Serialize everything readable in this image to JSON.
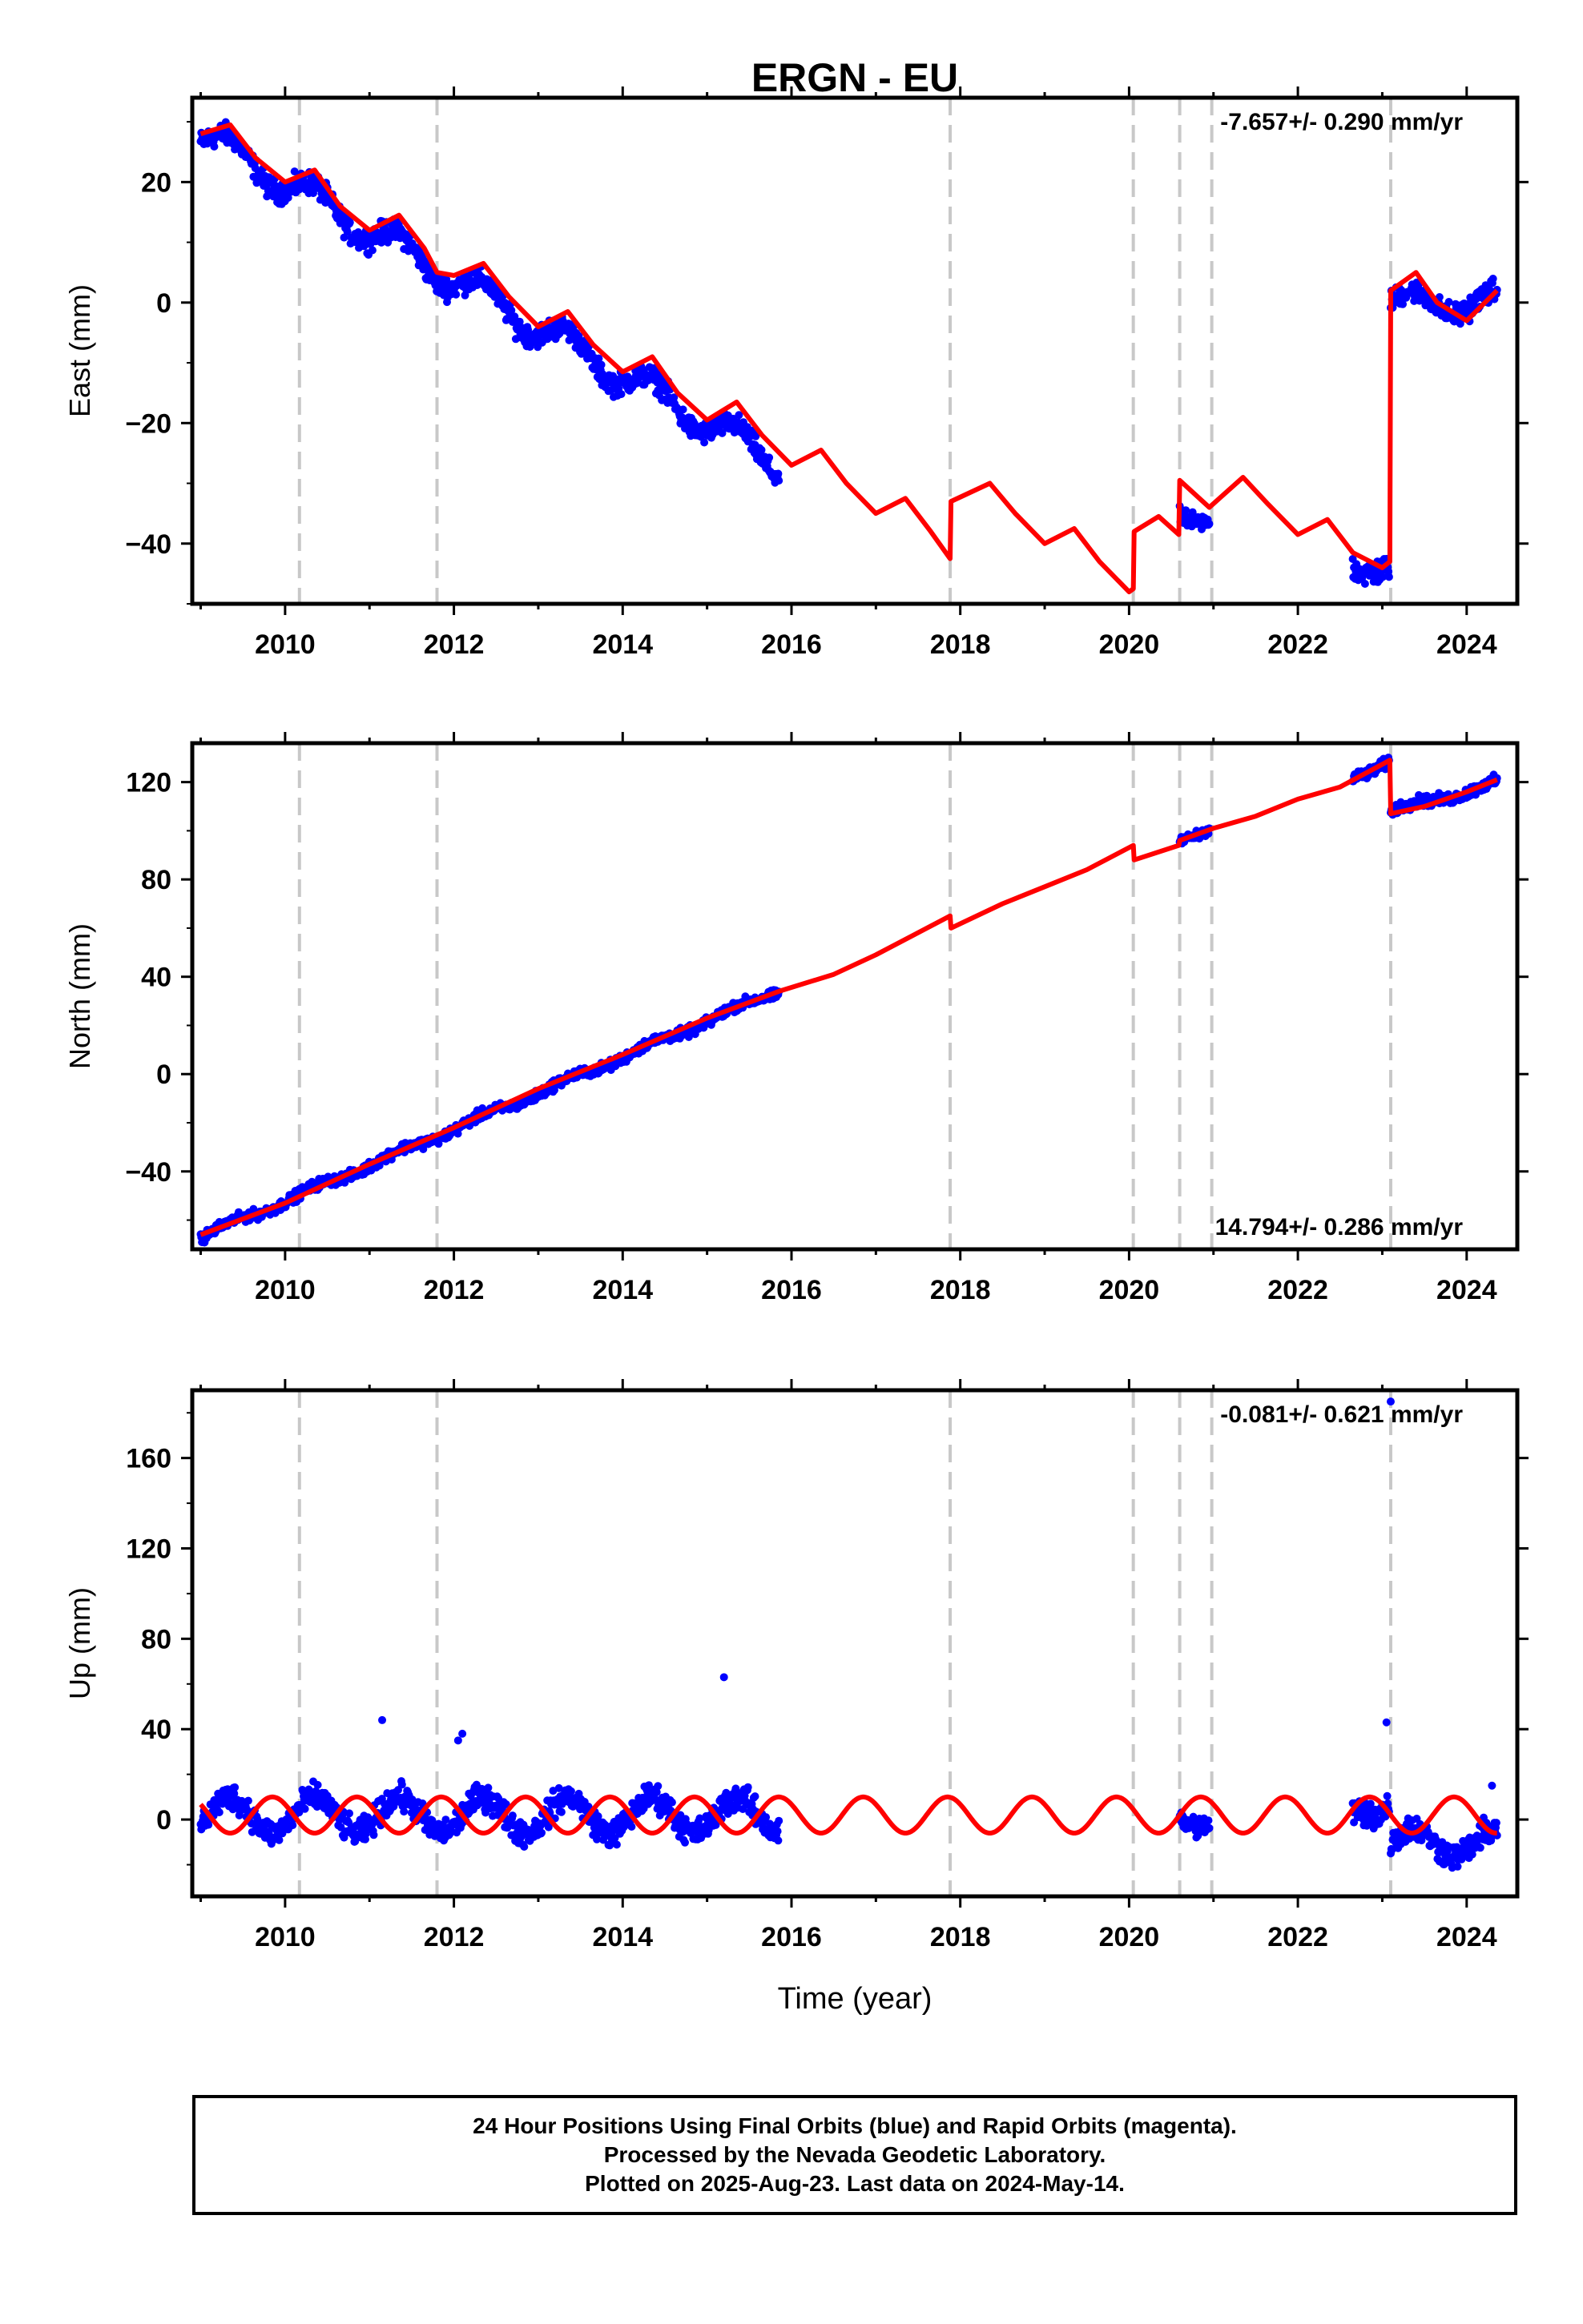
{
  "chart_data": [
    {
      "type": "scatter",
      "title": "ERGN - EU",
      "ylabel": "East (mm)",
      "xlabel": "",
      "xlim": [
        2008.9,
        2024.6
      ],
      "ylim": [
        -50,
        34
      ],
      "yticks": [
        20,
        0,
        -20,
        -40
      ],
      "xticks": [
        2010,
        2012,
        2014,
        2016,
        2018,
        2020,
        2022,
        2024
      ],
      "annotation": "-7.657+/- 0.290 mm/yr",
      "grid": false,
      "steps": [
        {
          "x": 2023.1,
          "dy": 46
        },
        {
          "x": 2020.6,
          "dy": 9
        },
        {
          "x": 2020.05,
          "dy": 9
        },
        {
          "x": 2017.88,
          "dy": 9
        }
      ],
      "series": [
        {
          "name": "",
          "kind": "points",
          "color": "#0000ff",
          "segments": [
            {
              "start": 2009.0,
              "end": 2015.85,
              "y0": 28,
              "rate": -8.0,
              "amp": 2.4,
              "noise": 1.6,
              "n": 900
            },
            {
              "start": 2020.6,
              "end": 2020.95,
              "y0": -35.5,
              "rate": 0,
              "amp": 1.0,
              "noise": 1.2,
              "n": 40
            },
            {
              "start": 2022.65,
              "end": 2023.08,
              "y0": -43.5,
              "rate": 0,
              "amp": 1.5,
              "noise": 1.8,
              "n": 60
            },
            {
              "start": 2023.1,
              "end": 2024.36,
              "y0": 0,
              "rate": 0,
              "amp": 2.0,
              "noise": 1.6,
              "n": 160
            }
          ]
        },
        {
          "name": "",
          "kind": "model",
          "color": "#ff0000",
          "x": [
            2009.0,
            2009.35,
            2009.65,
            2010.0,
            2010.35,
            2010.65,
            2011.0,
            2011.35,
            2011.65,
            2011.8,
            2012.0,
            2012.35,
            2012.65,
            2013.0,
            2013.35,
            2013.65,
            2014.0,
            2014.35,
            2014.65,
            2015.0,
            2015.35,
            2015.65,
            2016.0,
            2016.35,
            2016.65,
            2017.0,
            2017.35,
            2017.65,
            2017.88,
            2017.89,
            2018.35,
            2018.65,
            2019.0,
            2019.35,
            2019.65,
            2020.0,
            2020.05,
            2020.06,
            2020.35,
            2020.59,
            2020.6,
            2020.95,
            2021.35,
            2021.65,
            2022.0,
            2022.35,
            2022.65,
            2023.0,
            2023.09,
            2023.1,
            2023.4,
            2023.65,
            2024.0,
            2024.36
          ],
          "y": [
            28,
            29.5,
            24,
            20,
            22,
            16,
            12,
            14.5,
            9,
            5,
            4.5,
            6.5,
            1,
            -4,
            -1.5,
            -7,
            -11.5,
            -9,
            -15,
            -19.5,
            -16.5,
            -22,
            -27,
            -24.5,
            -30,
            -35,
            -32.5,
            -38,
            -42.5,
            -33,
            -30,
            -35,
            -40,
            -37.5,
            -43,
            -48,
            -47.5,
            -38,
            -35.5,
            -38.5,
            -29.5,
            -34,
            -29,
            -33.5,
            -38.5,
            -36,
            -41.5,
            -44,
            -43,
            2,
            5,
            0,
            -3,
            2
          ]
        }
      ]
    },
    {
      "type": "scatter",
      "title": "",
      "ylabel": "North (mm)",
      "xlabel": "",
      "xlim": [
        2008.9,
        2024.6
      ],
      "ylim": [
        -72,
        136
      ],
      "yticks": [
        120,
        80,
        40,
        0,
        -40
      ],
      "xticks": [
        2010,
        2012,
        2014,
        2016,
        2018,
        2020,
        2022,
        2024
      ],
      "annotation": "14.794+/- 0.286 mm/yr",
      "grid": false,
      "series": [
        {
          "name": "",
          "kind": "points",
          "color": "#0000ff",
          "segments": [
            {
              "start": 2009.0,
              "end": 2015.85,
              "y0": -67,
              "rate": 14.8,
              "amp": 1.2,
              "noise": 1.8,
              "n": 900
            },
            {
              "start": 2020.6,
              "end": 2020.95,
              "y0": 96,
              "rate": 14.8,
              "amp": 0.8,
              "noise": 1.5,
              "n": 40
            },
            {
              "start": 2022.65,
              "end": 2023.08,
              "y0": 122,
              "rate": 14.8,
              "amp": 1.0,
              "noise": 2.0,
              "n": 60
            },
            {
              "start": 2023.1,
              "end": 2024.36,
              "y0": 108,
              "rate": 9.0,
              "amp": 1.2,
              "noise": 2.0,
              "n": 160
            }
          ]
        },
        {
          "name": "",
          "kind": "model",
          "color": "#ff0000",
          "x": [
            2009.0,
            2010.0,
            2011.0,
            2012.0,
            2013.0,
            2014.0,
            2015.0,
            2015.85,
            2016.5,
            2017.0,
            2017.88,
            2017.89,
            2018.5,
            2019.0,
            2019.5,
            2020.05,
            2020.06,
            2020.59,
            2020.6,
            2021.0,
            2021.5,
            2022.0,
            2022.5,
            2023.09,
            2023.1,
            2023.5,
            2024.0,
            2024.36
          ],
          "y": [
            -66,
            -53,
            -37,
            -22,
            -6,
            8,
            23,
            34,
            41,
            49,
            65,
            60,
            70,
            77,
            84,
            94,
            88,
            94,
            96,
            101,
            106,
            113,
            118,
            129,
            107,
            110,
            116,
            121
          ]
        }
      ]
    },
    {
      "type": "scatter",
      "title": "",
      "ylabel": "Up (mm)",
      "xlabel": "Time (year)",
      "xlim": [
        2008.9,
        2024.6
      ],
      "ylim": [
        -34,
        190
      ],
      "yticks": [
        160,
        120,
        80,
        40,
        0
      ],
      "xticks": [
        2010,
        2012,
        2014,
        2016,
        2018,
        2020,
        2022,
        2024
      ],
      "annotation": "-0.081+/- 0.621 mm/yr",
      "grid": false,
      "outliers": [
        [
          2011.15,
          44
        ],
        [
          2012.1,
          38
        ],
        [
          2012.05,
          35
        ],
        [
          2015.2,
          63
        ],
        [
          2023.05,
          43
        ],
        [
          2023.1,
          185
        ],
        [
          2024.3,
          15
        ]
      ],
      "series": [
        {
          "name": "",
          "kind": "points",
          "color": "#0000ff",
          "segments": [
            {
              "start": 2009.0,
              "end": 2015.85,
              "y0": 2,
              "rate": 0,
              "amp": 8.0,
              "noise": 5.0,
              "n": 900
            },
            {
              "start": 2020.6,
              "end": 2020.95,
              "y0": 0,
              "rate": 0,
              "amp": 3.0,
              "noise": 4.0,
              "n": 40
            },
            {
              "start": 2022.65,
              "end": 2023.08,
              "y0": 6,
              "rate": 0,
              "amp": 4.0,
              "noise": 6.0,
              "n": 60
            },
            {
              "start": 2023.1,
              "end": 2024.36,
              "y0": -10,
              "rate": 0,
              "amp": 6.0,
              "noise": 5.0,
              "n": 160
            }
          ]
        },
        {
          "name": "",
          "kind": "model",
          "color": "#ff0000",
          "seasonal": {
            "amp": 8.0,
            "phase": 0.6,
            "base": 2
          },
          "x": [
            2009.0,
            2024.36
          ]
        }
      ]
    }
  ],
  "event_lines": [
    2010.17,
    2011.8,
    2017.88,
    2020.05,
    2020.6,
    2020.98,
    2023.1
  ],
  "footer": {
    "line1": "24 Hour Positions Using Final Orbits (blue) and Rapid Orbits (magenta).",
    "line2": "Processed by the Nevada Geodetic Laboratory.",
    "line3": "Plotted on 2025-Aug-23. Last data on 2024-May-14."
  }
}
